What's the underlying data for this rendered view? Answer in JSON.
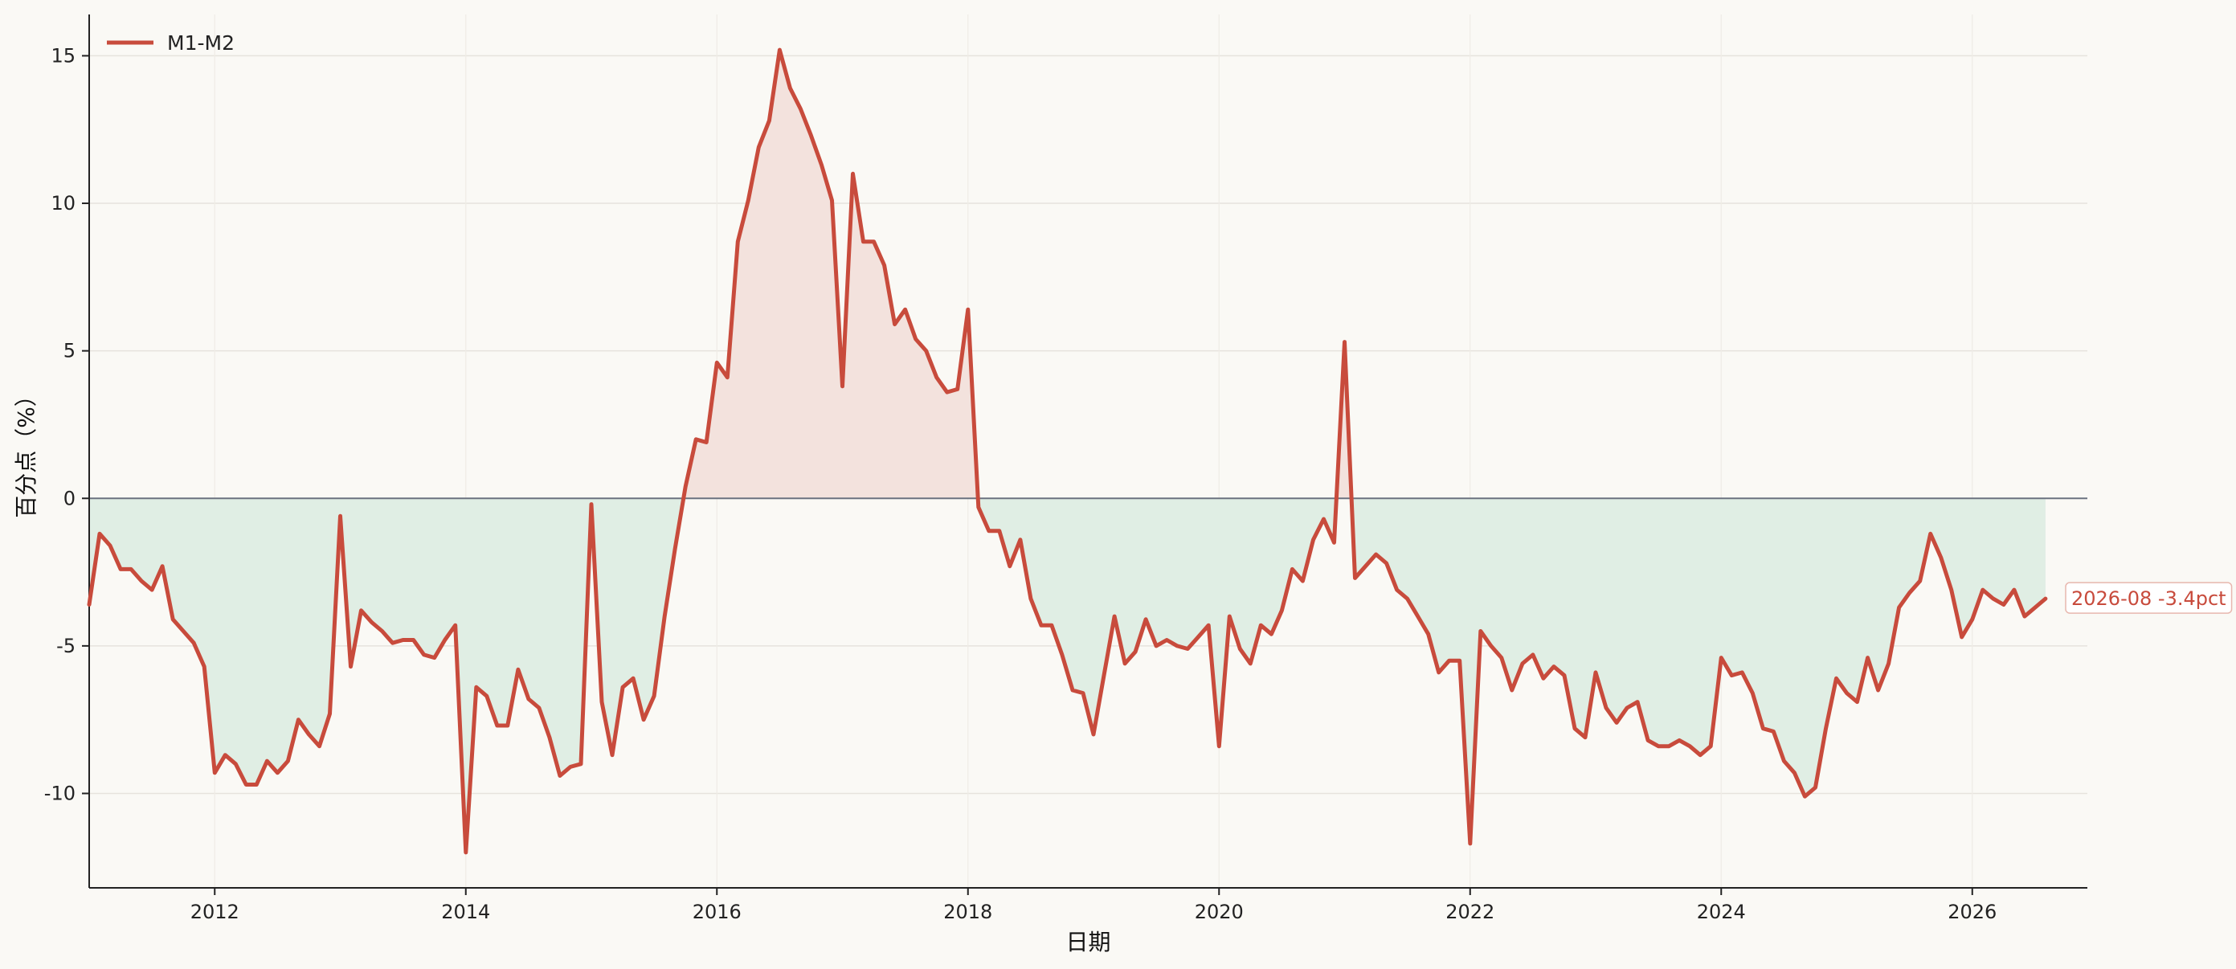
{
  "chart_data": {
    "type": "line",
    "title": "",
    "xlabel": "日期",
    "ylabel": "百分点（%）",
    "x_start": "2011-01",
    "x_ticks": [
      "2012",
      "2014",
      "2016",
      "2018",
      "2020",
      "2022",
      "2024",
      "2026"
    ],
    "x_range": [
      "2011-01",
      "2026-12"
    ],
    "y_ticks": [
      15,
      10,
      5,
      0,
      -5,
      -10
    ],
    "ylim": [
      -13.2,
      16.4
    ],
    "grid": true,
    "legend_position": "top-left",
    "zero_line": true,
    "series": [
      {
        "name": "M1-M2",
        "color": "#c84b3c",
        "fill_above_zero": "#f3e2dd",
        "fill_below_zero": "#e0eee4",
        "x": [
          "2011-01",
          "2011-02",
          "2011-03",
          "2011-04",
          "2011-05",
          "2011-06",
          "2011-07",
          "2011-08",
          "2011-09",
          "2011-10",
          "2011-11",
          "2011-12",
          "2012-01",
          "2012-02",
          "2012-03",
          "2012-04",
          "2012-05",
          "2012-06",
          "2012-07",
          "2012-08",
          "2012-09",
          "2012-10",
          "2012-11",
          "2012-12",
          "2013-01",
          "2013-02",
          "2013-03",
          "2013-04",
          "2013-05",
          "2013-06",
          "2013-07",
          "2013-08",
          "2013-09",
          "2013-10",
          "2013-11",
          "2013-12",
          "2014-01",
          "2014-02",
          "2014-03",
          "2014-04",
          "2014-05",
          "2014-06",
          "2014-07",
          "2014-08",
          "2014-09",
          "2014-10",
          "2014-11",
          "2014-12",
          "2015-01",
          "2015-02",
          "2015-03",
          "2015-04",
          "2015-05",
          "2015-06",
          "2015-07",
          "2015-08",
          "2015-09",
          "2015-10",
          "2015-11",
          "2015-12",
          "2016-01",
          "2016-02",
          "2016-03",
          "2016-04",
          "2016-05",
          "2016-06",
          "2016-07",
          "2016-08",
          "2016-09",
          "2016-10",
          "2016-11",
          "2016-12",
          "2017-01",
          "2017-02",
          "2017-03",
          "2017-04",
          "2017-05",
          "2017-06",
          "2017-07",
          "2017-08",
          "2017-09",
          "2017-10",
          "2017-11",
          "2017-12",
          "2018-01",
          "2018-02",
          "2018-03",
          "2018-04",
          "2018-05",
          "2018-06",
          "2018-07",
          "2018-08",
          "2018-09",
          "2018-10",
          "2018-11",
          "2018-12",
          "2019-01",
          "2019-02",
          "2019-03",
          "2019-04",
          "2019-05",
          "2019-06",
          "2019-07",
          "2019-08",
          "2019-09",
          "2019-10",
          "2019-11",
          "2019-12",
          "2020-01",
          "2020-02",
          "2020-03",
          "2020-04",
          "2020-05",
          "2020-06",
          "2020-07",
          "2020-08",
          "2020-09",
          "2020-10",
          "2020-11",
          "2020-12",
          "2021-01",
          "2021-02",
          "2021-03",
          "2021-04",
          "2021-05",
          "2021-06",
          "2021-07",
          "2021-08",
          "2021-09",
          "2021-10",
          "2021-11",
          "2021-12",
          "2022-01",
          "2022-02",
          "2022-03",
          "2022-04",
          "2022-05",
          "2022-06",
          "2022-07",
          "2022-08",
          "2022-09",
          "2022-10",
          "2022-11",
          "2022-12",
          "2023-01",
          "2023-02",
          "2023-03",
          "2023-04",
          "2023-05",
          "2023-06",
          "2023-07",
          "2023-08",
          "2023-09",
          "2023-10",
          "2023-11",
          "2023-12",
          "2024-01",
          "2024-02",
          "2024-03",
          "2024-04",
          "2024-05",
          "2024-06",
          "2024-07",
          "2024-08",
          "2024-09",
          "2024-10",
          "2024-11",
          "2024-12",
          "2025-01",
          "2025-02",
          "2025-03",
          "2025-04",
          "2025-05",
          "2025-06",
          "2025-07",
          "2025-08",
          "2025-09",
          "2025-10",
          "2025-11",
          "2025-12",
          "2026-01",
          "2026-02",
          "2026-03",
          "2026-04",
          "2026-05",
          "2026-06",
          "2026-07",
          "2026-08"
        ],
        "values": [
          -3.6,
          -1.2,
          -1.6,
          -2.4,
          -2.4,
          -2.8,
          -3.1,
          -2.3,
          -4.1,
          -4.5,
          -4.9,
          -5.7,
          -9.3,
          -8.7,
          -9.0,
          -9.7,
          -9.7,
          -8.9,
          -9.3,
          -8.9,
          -7.5,
          -8.0,
          -8.4,
          -7.3,
          -0.6,
          -5.7,
          -3.8,
          -4.2,
          -4.5,
          -4.9,
          -4.8,
          -4.8,
          -5.3,
          -5.4,
          -4.8,
          -4.3,
          -12.0,
          -6.4,
          -6.7,
          -7.7,
          -7.7,
          -5.8,
          -6.8,
          -7.1,
          -8.1,
          -9.4,
          -9.1,
          -9.0,
          -0.2,
          -6.9,
          -8.7,
          -6.4,
          -6.1,
          -7.5,
          -6.7,
          -4.0,
          -1.7,
          0.4,
          2.0,
          1.9,
          4.6,
          4.1,
          8.7,
          10.1,
          11.9,
          12.8,
          15.2,
          13.9,
          13.2,
          12.3,
          11.3,
          10.1,
          3.8,
          11.0,
          8.7,
          8.7,
          7.9,
          5.9,
          6.4,
          5.4,
          5.0,
          4.1,
          3.6,
          3.7,
          6.4,
          -0.3,
          -1.1,
          -1.1,
          -2.3,
          -1.4,
          -3.4,
          -4.3,
          -4.3,
          -5.3,
          -6.5,
          -6.6,
          -8.0,
          -6.0,
          -4.0,
          -5.6,
          -5.2,
          -4.1,
          -5.0,
          -4.8,
          -5.0,
          -5.1,
          -4.7,
          -4.3,
          -8.4,
          -4.0,
          -5.1,
          -5.6,
          -4.3,
          -4.6,
          -3.8,
          -2.4,
          -2.8,
          -1.4,
          -0.7,
          -1.5,
          5.3,
          -2.7,
          -2.3,
          -1.9,
          -2.2,
          -3.1,
          -3.4,
          -4.0,
          -4.6,
          -5.9,
          -5.5,
          -5.5,
          -11.7,
          -4.5,
          -5.0,
          -5.4,
          -6.5,
          -5.6,
          -5.3,
          -6.1,
          -5.7,
          -6.0,
          -7.8,
          -8.1,
          -5.9,
          -7.1,
          -7.6,
          -7.1,
          -6.9,
          -8.2,
          -8.4,
          -8.4,
          -8.2,
          -8.4,
          -8.7,
          -8.4,
          -5.4,
          -6.0,
          -5.9,
          -6.6,
          -7.8,
          -7.9,
          -8.9,
          -9.3,
          -10.1,
          -9.8,
          -7.8,
          -6.1,
          -6.6,
          -6.9,
          -5.4,
          -6.5,
          -5.6,
          -3.7,
          -3.2,
          -2.8,
          -1.2,
          -2.0,
          -3.1,
          -4.7,
          -4.1,
          -3.1,
          -3.4,
          -3.6,
          -3.1,
          -4.0,
          -3.7,
          -3.4
        ]
      }
    ],
    "annotation": {
      "label": "2026-08  -3.4pct"
    }
  }
}
